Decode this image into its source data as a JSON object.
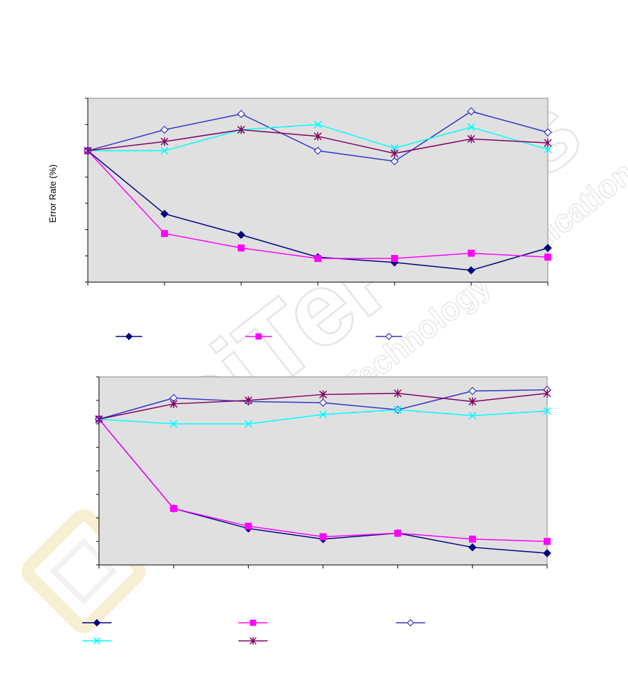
{
  "watermark": {
    "main": "SciTePress",
    "sub": "Science and Technology Publications"
  },
  "colors": {
    "plot_bg": "#e0e0e0",
    "navy": "#000080",
    "magenta": "#ff00ff",
    "blue": "#3333cc",
    "cyan": "#00ffff",
    "purple": "#800060"
  },
  "chart_data": [
    {
      "type": "line",
      "title": "",
      "xlabel": "",
      "ylabel": "Error Rate (%)",
      "x": [
        0,
        1,
        2,
        3,
        4,
        5,
        6
      ],
      "ylim": [
        0,
        7
      ],
      "grid": false,
      "legend_position": "bottom",
      "series": [
        {
          "values": [
            5.0,
            2.6,
            1.8,
            0.95,
            0.75,
            0.45,
            1.3
          ],
          "color": "#000080",
          "marker": "diamond-filled"
        },
        {
          "values": [
            5.0,
            1.85,
            1.3,
            0.9,
            0.9,
            1.1,
            0.95
          ],
          "color": "#ff00ff",
          "marker": "square-filled"
        },
        {
          "values": [
            5.0,
            5.8,
            6.4,
            5.0,
            4.6,
            6.5,
            5.7
          ],
          "color": "#3333cc",
          "marker": "diamond-open"
        },
        {
          "values": [
            5.0,
            5.0,
            5.8,
            6.0,
            5.1,
            5.9,
            5.05
          ],
          "color": "#00ffff",
          "marker": "x"
        },
        {
          "values": [
            5.0,
            5.35,
            5.8,
            5.55,
            4.9,
            5.45,
            5.3
          ],
          "color": "#800060",
          "marker": "star"
        }
      ],
      "legend_shown": [
        0,
        1,
        2
      ]
    },
    {
      "type": "line",
      "title": "",
      "xlabel": "",
      "ylabel": "",
      "x": [
        0,
        1,
        2,
        3,
        4,
        5,
        6
      ],
      "ylim": [
        0,
        8
      ],
      "grid": false,
      "legend_position": "bottom",
      "series": [
        {
          "values": [
            6.2,
            2.4,
            1.55,
            1.1,
            1.35,
            0.75,
            0.5
          ],
          "color": "#000080",
          "marker": "diamond-filled"
        },
        {
          "values": [
            6.2,
            2.4,
            1.65,
            1.2,
            1.35,
            1.1,
            1.0
          ],
          "color": "#ff00ff",
          "marker": "square-filled"
        },
        {
          "values": [
            6.2,
            7.1,
            6.95,
            6.9,
            6.6,
            7.4,
            7.45
          ],
          "color": "#3333cc",
          "marker": "diamond-open"
        },
        {
          "values": [
            6.2,
            6.0,
            6.0,
            6.4,
            6.6,
            6.35,
            6.55
          ],
          "color": "#00ffff",
          "marker": "x"
        },
        {
          "values": [
            6.2,
            6.85,
            7.0,
            7.25,
            7.3,
            6.95,
            7.3
          ],
          "color": "#800060",
          "marker": "star"
        }
      ],
      "legend_shown": [
        0,
        1,
        2,
        3,
        4
      ]
    }
  ]
}
